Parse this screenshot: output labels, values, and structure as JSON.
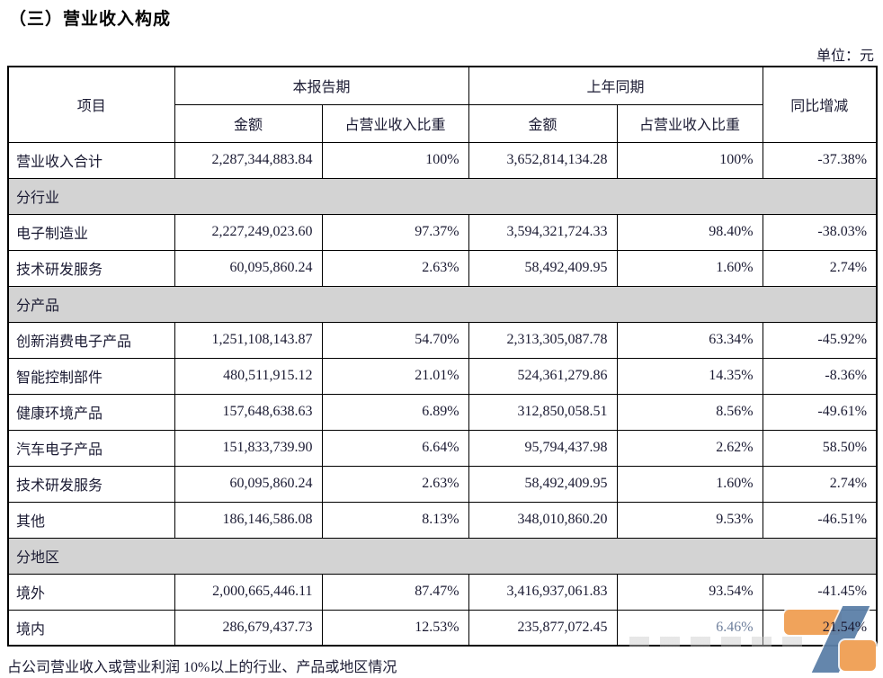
{
  "title": "（三）营业收入构成",
  "unit_note": "单位：元",
  "footer_note": "占公司营业收入或营业利润 10%以上的行业、产品或地区情况",
  "colors": {
    "section_bg": "#d3d3d3",
    "text": "#1b1b33",
    "logo_orange": "#f0a35b",
    "logo_blue": "#5c80a8"
  },
  "table": {
    "headers": {
      "item": "项目",
      "current_period": "本报告期",
      "prior_period": "上年同期",
      "amount": "金额",
      "share": "占营业收入比重",
      "yoy": "同比增减"
    },
    "rows": [
      {
        "type": "data",
        "cells": [
          "营业收入合计",
          "2,287,344,883.84",
          "100%",
          "3,652,814,134.28",
          "100%",
          "-37.38%"
        ]
      },
      {
        "type": "section",
        "label": "分行业"
      },
      {
        "type": "data",
        "cells": [
          "电子制造业",
          "2,227,249,023.60",
          "97.37%",
          "3,594,321,724.33",
          "98.40%",
          "-38.03%"
        ]
      },
      {
        "type": "data",
        "cells": [
          "技术研发服务",
          "60,095,860.24",
          "2.63%",
          "58,492,409.95",
          "1.60%",
          "2.74%"
        ]
      },
      {
        "type": "section",
        "label": "分产品"
      },
      {
        "type": "data",
        "cells": [
          "创新消费电子产品",
          "1,251,108,143.87",
          "54.70%",
          "2,313,305,087.78",
          "63.34%",
          "-45.92%"
        ]
      },
      {
        "type": "data",
        "cells": [
          "智能控制部件",
          "480,511,915.12",
          "21.01%",
          "524,361,279.86",
          "14.35%",
          "-8.36%"
        ]
      },
      {
        "type": "data",
        "cells": [
          "健康环境产品",
          "157,648,638.63",
          "6.89%",
          "312,850,058.51",
          "8.56%",
          "-49.61%"
        ]
      },
      {
        "type": "data",
        "cells": [
          "汽车电子产品",
          "151,833,739.90",
          "6.64%",
          "95,794,437.98",
          "2.62%",
          "58.50%"
        ]
      },
      {
        "type": "data",
        "cells": [
          "技术研发服务",
          "60,095,860.24",
          "2.63%",
          "58,492,409.95",
          "1.60%",
          "2.74%"
        ]
      },
      {
        "type": "data",
        "cells": [
          "其他",
          "186,146,586.08",
          "8.13%",
          "348,010,860.20",
          "9.53%",
          "-46.51%"
        ]
      },
      {
        "type": "section",
        "label": "分地区"
      },
      {
        "type": "data",
        "cells": [
          "境外",
          "2,000,665,446.11",
          "87.47%",
          "3,416,937,061.83",
          "93.54%",
          "-41.45%"
        ]
      },
      {
        "type": "data",
        "cells": [
          "境内",
          "286,679,437.73",
          "12.53%",
          "235,877,072.45",
          "6.46%",
          "21.54%"
        ],
        "faded": [
          4
        ]
      }
    ]
  }
}
